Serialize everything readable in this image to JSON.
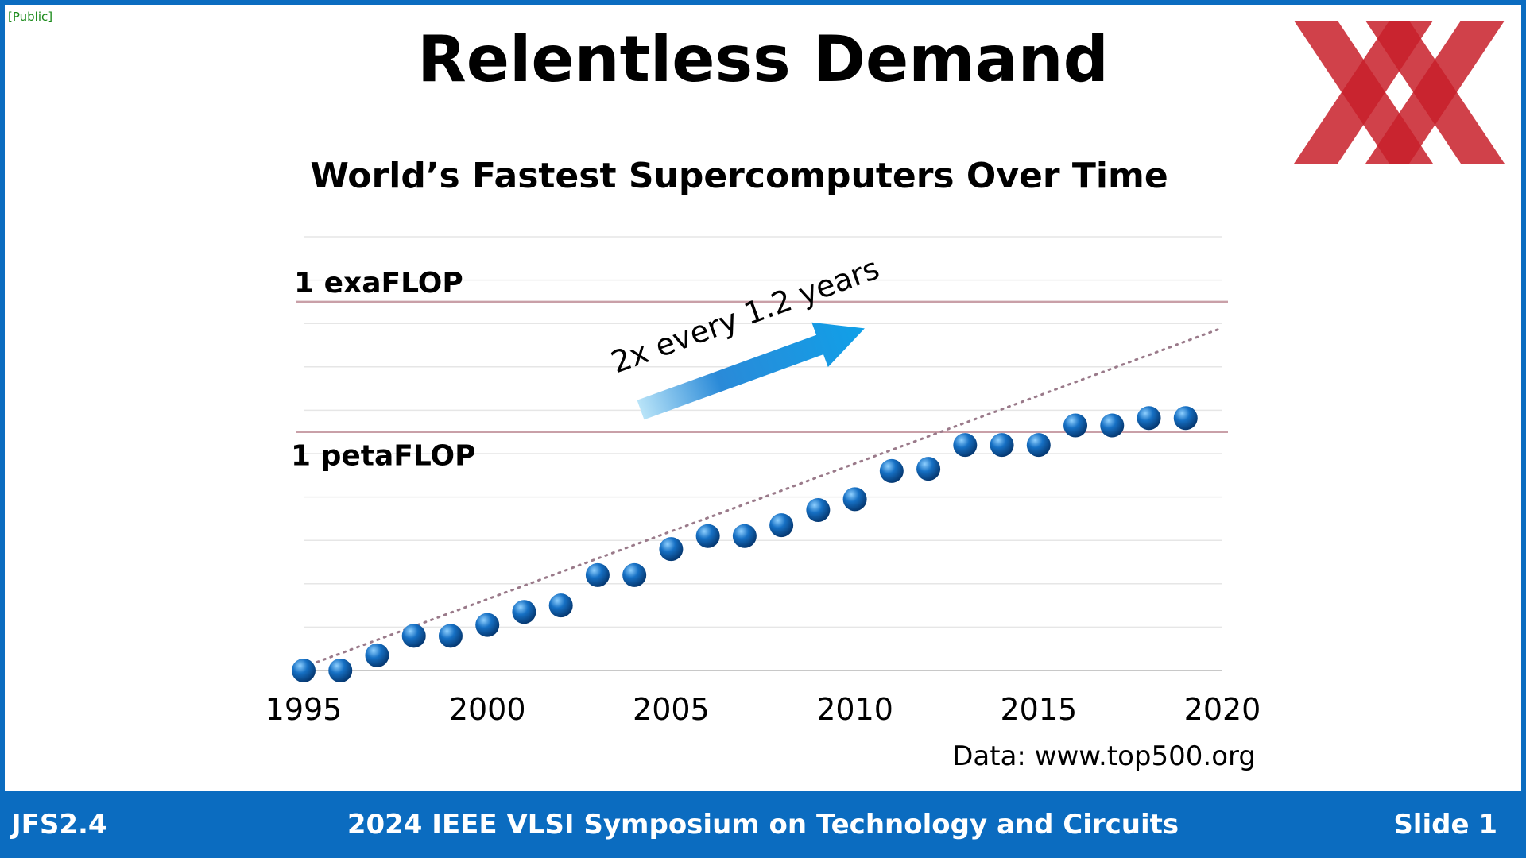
{
  "public_tag": "[Public]",
  "title": "Relentless Demand",
  "footer": {
    "left": "JFS2.4",
    "center": "2024 IEEE VLSI Symposium on Technology and Circuits",
    "right": "Slide 1"
  },
  "colors": {
    "frame": "#0b6cc0",
    "footer_bg": "#0b6cc0",
    "logo": "#c8202a",
    "point": "#1670c4",
    "reference_line": "#c9a0a8",
    "trend_line": "#9a7a8a",
    "arrow_start": "#b9e4f8",
    "arrow_end": "#0a73cf"
  },
  "chart_data": {
    "type": "scatter",
    "title": "World’s Fastest Supercomputers Over Time",
    "xlabel": "",
    "ylabel": "",
    "source": "Data: www.top500.org",
    "x_ticks": [
      1995,
      2000,
      2005,
      2010,
      2015,
      2020
    ],
    "xlim": [
      1995,
      2020
    ],
    "y_scale": "log10 FLOPS",
    "ylim": [
      9.5,
      19.5
    ],
    "y_tick_labels_shown": false,
    "grid": true,
    "legend": "none",
    "reference_lines": [
      {
        "label": "1 exaFLOP",
        "y": 18
      },
      {
        "label": "1 petaFLOP",
        "y": 15
      }
    ],
    "annotation": "2x every 1.2 years",
    "trend_line": {
      "style": "dotted",
      "x": [
        1995,
        2020
      ],
      "y": [
        9.58,
        17.4
      ]
    },
    "series": [
      {
        "x": [
          1995,
          1996,
          1997,
          1998,
          1999,
          2000,
          2001,
          2002,
          2003,
          2004,
          2005,
          2006,
          2007,
          2008,
          2009,
          2010,
          2011,
          2012,
          2013,
          2014,
          2015,
          2016,
          2017,
          2018,
          2019
        ],
        "y": [
          9.5,
          9.5,
          9.85,
          10.3,
          10.3,
          10.55,
          10.85,
          11.0,
          11.7,
          11.7,
          12.3,
          12.6,
          12.6,
          12.85,
          13.2,
          13.45,
          14.1,
          14.15,
          14.7,
          14.7,
          14.7,
          15.15,
          15.15,
          15.32,
          15.32
        ]
      }
    ]
  }
}
